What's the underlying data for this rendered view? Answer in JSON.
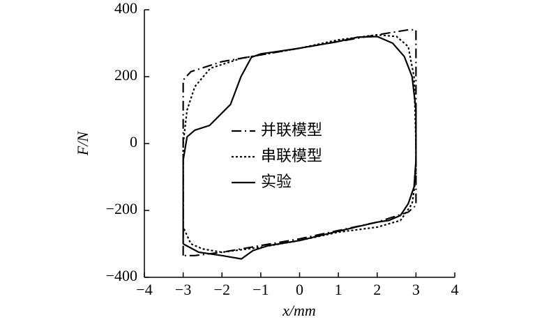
{
  "chart_data": {
    "type": "line",
    "x_label": "x/mm",
    "y_label": "F/N",
    "xlim": [
      -4,
      4
    ],
    "ylim": [
      -400,
      400
    ],
    "xticks": [
      {
        "value": -4,
        "label": "−4"
      },
      {
        "value": -3,
        "label": "−3"
      },
      {
        "value": -2,
        "label": "−2"
      },
      {
        "value": -1,
        "label": "−1"
      },
      0,
      1,
      2,
      3,
      4
    ],
    "yticks": [
      {
        "value": -400,
        "label": "−400"
      },
      {
        "value": -200,
        "label": "−200"
      },
      0,
      200,
      400
    ],
    "series": [
      {
        "name": "并联模型",
        "color": "#000000",
        "dash": "14 5 2 5",
        "x": [
          -3,
          -3,
          -2.8,
          -2,
          -1,
          0,
          1,
          2,
          2.8,
          3,
          3,
          2.8,
          2,
          1,
          0,
          -1,
          -2,
          -2.7,
          -3
        ],
        "values": [
          -335,
          190,
          215,
          245,
          265,
          285,
          305,
          325,
          340,
          340,
          -185,
          -205,
          -235,
          -260,
          -285,
          -305,
          -325,
          -335,
          -335
        ]
      },
      {
        "name": "串联模型",
        "color": "#000000",
        "dash": "3 3",
        "x": [
          -3,
          -3,
          -2.9,
          -2.7,
          -2.3,
          -1.5,
          -1,
          0,
          1,
          2,
          2.5,
          2.8,
          2.95,
          3,
          3,
          2.9,
          2.6,
          2,
          1,
          0,
          -1,
          -2,
          -2.5,
          -2.8,
          -3,
          -3
        ],
        "values": [
          -250,
          0,
          100,
          170,
          225,
          255,
          265,
          285,
          310,
          325,
          320,
          290,
          200,
          0,
          -100,
          -180,
          -230,
          -250,
          -265,
          -290,
          -310,
          -325,
          -315,
          -300,
          -250,
          -250
        ]
      },
      {
        "name": "实验",
        "color": "#000000",
        "dash": "none",
        "x": [
          -3,
          -3,
          -2.9,
          -2.7,
          -2.32,
          -1.78,
          -1.51,
          -1.24,
          -1,
          0,
          1,
          1.5,
          2,
          2.4,
          2.7,
          2.9,
          3,
          3,
          2.95,
          2.8,
          2.6,
          2.3,
          2,
          1,
          0,
          -0.8,
          -1.2,
          -1.5,
          -2,
          -2.6,
          -3
        ],
        "values": [
          -300,
          -50,
          20,
          40,
          54,
          117,
          200,
          258,
          268,
          285,
          305,
          318,
          320,
          300,
          260,
          200,
          100,
          -50,
          -130,
          -180,
          -215,
          -230,
          -235,
          -262,
          -290,
          -305,
          -320,
          -345,
          -335,
          -325,
          -300
        ]
      }
    ]
  }
}
